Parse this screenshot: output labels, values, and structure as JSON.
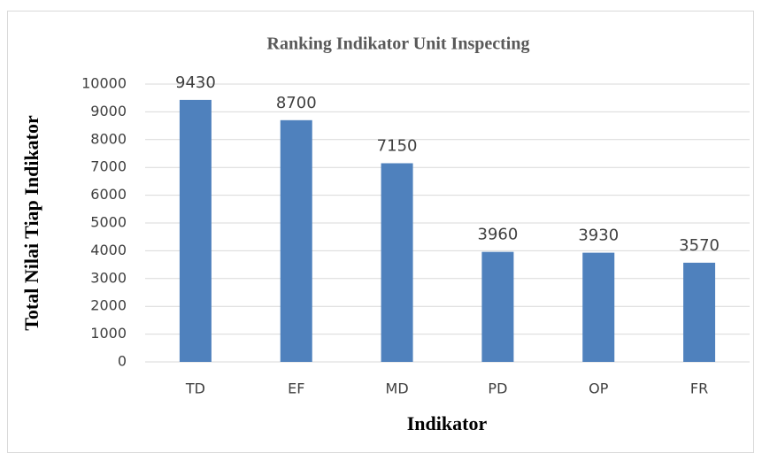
{
  "chart_data": {
    "type": "bar",
    "title": "Ranking Indikator Unit Inspecting",
    "x_label": "Indikator",
    "y_label": "Total Nilai Tiap Indikator",
    "categories": [
      "TD",
      "EF",
      "MD",
      "PD",
      "OP",
      "FR"
    ],
    "values": [
      9430,
      8700,
      7150,
      3960,
      3930,
      3570
    ],
    "color": "#4f81bd",
    "ylim": [
      0,
      10000
    ],
    "yticks": [
      0,
      1000,
      2000,
      3000,
      4000,
      5000,
      6000,
      7000,
      8000,
      9000,
      10000
    ],
    "grid": true
  }
}
